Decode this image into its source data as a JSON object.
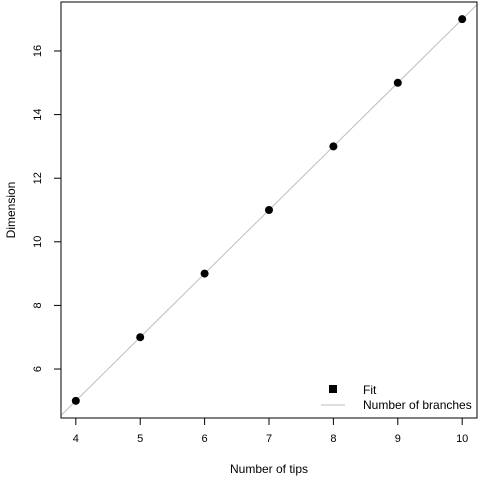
{
  "chart_data": {
    "type": "scatter",
    "title": "",
    "xlabel": "Number of tips",
    "ylabel": "Dimension",
    "xlim": [
      3.77,
      10.23
    ],
    "ylim": [
      4.46,
      17.54
    ],
    "xticks": [
      4,
      5,
      6,
      7,
      8,
      9,
      10
    ],
    "yticks": [
      6,
      8,
      10,
      12,
      14,
      16
    ],
    "grid": false,
    "legend_position": "bottom-right",
    "series": [
      {
        "name": "Fit",
        "kind": "points",
        "marker": "filled-circle",
        "color": "#000000",
        "x": [
          4,
          5,
          6,
          7,
          8,
          9,
          10
        ],
        "y": [
          5,
          7,
          9,
          11,
          13,
          15,
          17
        ]
      },
      {
        "name": "Number of branches",
        "kind": "line",
        "color": "#bebebe",
        "line": {
          "intercept": -3,
          "slope": 2
        }
      }
    ],
    "legend": {
      "items": [
        {
          "label": "Fit",
          "symbol": "square",
          "color": "#000000"
        },
        {
          "label": "Number of branches",
          "symbol": "line",
          "color": "#bebebe"
        }
      ]
    }
  }
}
